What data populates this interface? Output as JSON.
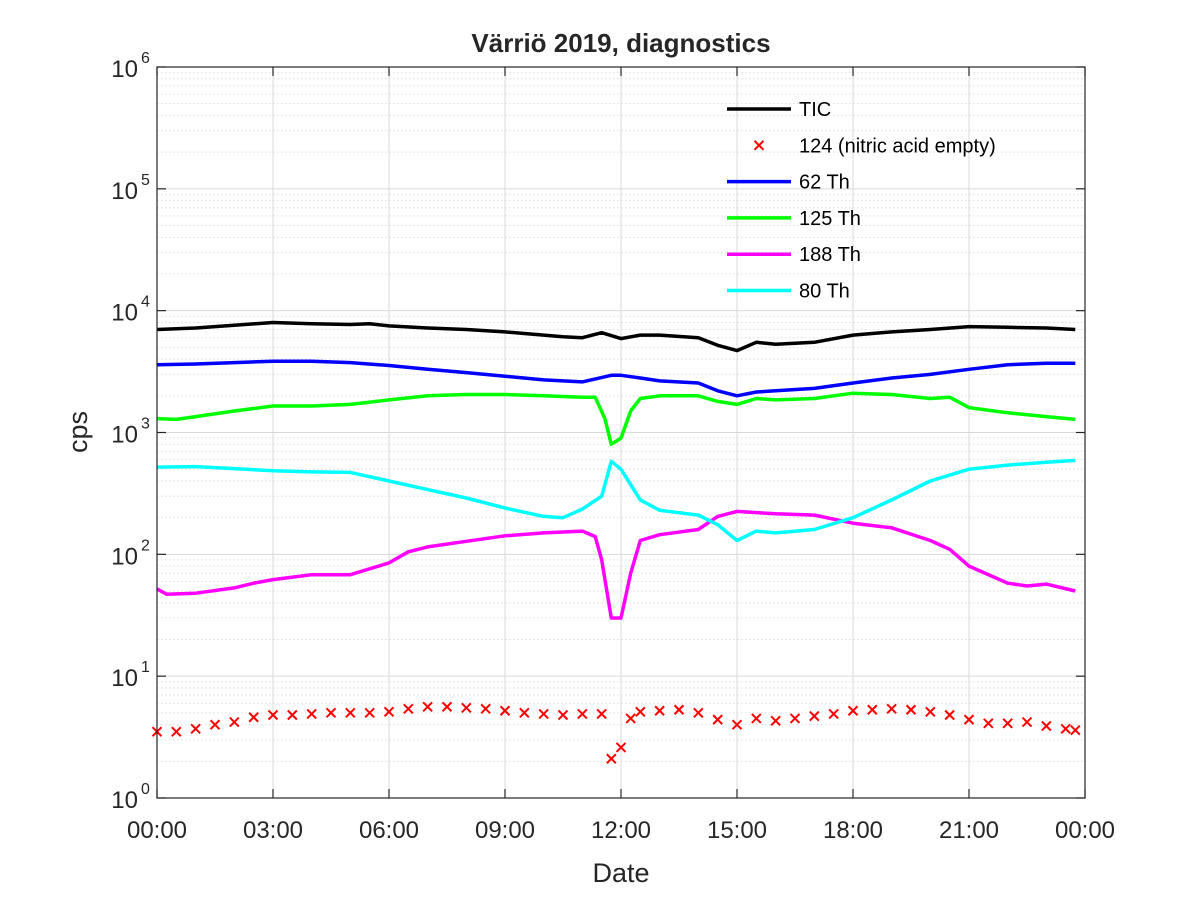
{
  "chart_data": {
    "type": "line",
    "title": "Värriö 2019, diagnostics",
    "xlabel": "Date",
    "ylabel": "cps",
    "yscale": "log",
    "ylim": [
      1,
      1000000
    ],
    "xlim": [
      "00:00",
      "24:00"
    ],
    "grid": true,
    "minor_grid": true,
    "legend_position": "top-right",
    "x_ticks": [
      "00:00",
      "03:00",
      "06:00",
      "09:00",
      "12:00",
      "15:00",
      "18:00",
      "21:00",
      "00:00"
    ],
    "y_ticks": [
      {
        "base": "10",
        "exp": "0"
      },
      {
        "base": "10",
        "exp": "1"
      },
      {
        "base": "10",
        "exp": "2"
      },
      {
        "base": "10",
        "exp": "3"
      },
      {
        "base": "10",
        "exp": "4"
      },
      {
        "base": "10",
        "exp": "5"
      },
      {
        "base": "10",
        "exp": "6"
      }
    ],
    "series": [
      {
        "name": "TIC",
        "style": "line",
        "color": "#000000",
        "points": [
          [
            "00:00",
            7000
          ],
          [
            "01:00",
            7200
          ],
          [
            "02:00",
            7600
          ],
          [
            "03:00",
            8000
          ],
          [
            "04:00",
            7800
          ],
          [
            "05:00",
            7700
          ],
          [
            "05:30",
            7800
          ],
          [
            "06:00",
            7500
          ],
          [
            "07:00",
            7200
          ],
          [
            "08:00",
            7000
          ],
          [
            "09:00",
            6700
          ],
          [
            "10:00",
            6300
          ],
          [
            "10:30",
            6100
          ],
          [
            "11:00",
            6000
          ],
          [
            "11:30",
            6600
          ],
          [
            "12:00",
            5900
          ],
          [
            "12:30",
            6300
          ],
          [
            "13:00",
            6300
          ],
          [
            "14:00",
            6000
          ],
          [
            "14:30",
            5200
          ],
          [
            "15:00",
            4700
          ],
          [
            "15:30",
            5500
          ],
          [
            "16:00",
            5300
          ],
          [
            "17:00",
            5500
          ],
          [
            "18:00",
            6300
          ],
          [
            "19:00",
            6700
          ],
          [
            "20:00",
            7000
          ],
          [
            "21:00",
            7400
          ],
          [
            "22:00",
            7300
          ],
          [
            "23:00",
            7200
          ],
          [
            "23:45",
            7000
          ]
        ]
      },
      {
        "name": "124 (nitric acid empty)",
        "style": "marker",
        "color": "#ff0000",
        "points": [
          [
            "00:00",
            3.5
          ],
          [
            "00:30",
            3.5
          ],
          [
            "01:00",
            3.7
          ],
          [
            "01:30",
            4.0
          ],
          [
            "02:00",
            4.2
          ],
          [
            "02:30",
            4.6
          ],
          [
            "03:00",
            4.8
          ],
          [
            "03:30",
            4.8
          ],
          [
            "04:00",
            4.9
          ],
          [
            "04:30",
            5.0
          ],
          [
            "05:00",
            5.0
          ],
          [
            "05:30",
            5.0
          ],
          [
            "06:00",
            5.1
          ],
          [
            "06:30",
            5.4
          ],
          [
            "07:00",
            5.6
          ],
          [
            "07:30",
            5.6
          ],
          [
            "08:00",
            5.5
          ],
          [
            "08:30",
            5.4
          ],
          [
            "09:00",
            5.2
          ],
          [
            "09:30",
            5.0
          ],
          [
            "10:00",
            4.9
          ],
          [
            "10:30",
            4.8
          ],
          [
            "11:00",
            4.9
          ],
          [
            "11:30",
            4.9
          ],
          [
            "11:45",
            2.1
          ],
          [
            "12:00",
            2.6
          ],
          [
            "12:15",
            4.5
          ],
          [
            "12:30",
            5.1
          ],
          [
            "13:00",
            5.2
          ],
          [
            "13:30",
            5.3
          ],
          [
            "14:00",
            5.0
          ],
          [
            "14:30",
            4.4
          ],
          [
            "15:00",
            4.0
          ],
          [
            "15:30",
            4.5
          ],
          [
            "16:00",
            4.3
          ],
          [
            "16:30",
            4.5
          ],
          [
            "17:00",
            4.7
          ],
          [
            "17:30",
            4.9
          ],
          [
            "18:00",
            5.2
          ],
          [
            "18:30",
            5.3
          ],
          [
            "19:00",
            5.4
          ],
          [
            "19:30",
            5.3
          ],
          [
            "20:00",
            5.1
          ],
          [
            "20:30",
            4.8
          ],
          [
            "21:00",
            4.4
          ],
          [
            "21:30",
            4.1
          ],
          [
            "22:00",
            4.1
          ],
          [
            "22:30",
            4.2
          ],
          [
            "23:00",
            3.9
          ],
          [
            "23:30",
            3.7
          ],
          [
            "23:45",
            3.6
          ]
        ]
      },
      {
        "name": "62 Th",
        "style": "line",
        "color": "#0000ff",
        "points": [
          [
            "00:00",
            3600
          ],
          [
            "01:00",
            3650
          ],
          [
            "02:00",
            3750
          ],
          [
            "03:00",
            3850
          ],
          [
            "04:00",
            3850
          ],
          [
            "05:00",
            3750
          ],
          [
            "06:00",
            3550
          ],
          [
            "07:00",
            3300
          ],
          [
            "08:00",
            3100
          ],
          [
            "09:00",
            2900
          ],
          [
            "10:00",
            2700
          ],
          [
            "11:00",
            2600
          ],
          [
            "11:45",
            2950
          ],
          [
            "12:00",
            2950
          ],
          [
            "12:30",
            2800
          ],
          [
            "13:00",
            2650
          ],
          [
            "14:00",
            2550
          ],
          [
            "14:30",
            2200
          ],
          [
            "15:00",
            2000
          ],
          [
            "15:30",
            2150
          ],
          [
            "16:00",
            2200
          ],
          [
            "17:00",
            2300
          ],
          [
            "18:00",
            2550
          ],
          [
            "19:00",
            2800
          ],
          [
            "20:00",
            3000
          ],
          [
            "21:00",
            3300
          ],
          [
            "22:00",
            3600
          ],
          [
            "23:00",
            3700
          ],
          [
            "23:45",
            3700
          ]
        ]
      },
      {
        "name": "125 Th",
        "style": "line",
        "color": "#00ff00",
        "points": [
          [
            "00:00",
            1300
          ],
          [
            "00:30",
            1280
          ],
          [
            "01:00",
            1350
          ],
          [
            "02:00",
            1500
          ],
          [
            "03:00",
            1650
          ],
          [
            "04:00",
            1650
          ],
          [
            "05:00",
            1700
          ],
          [
            "06:00",
            1850
          ],
          [
            "07:00",
            2000
          ],
          [
            "08:00",
            2050
          ],
          [
            "09:00",
            2050
          ],
          [
            "10:00",
            2000
          ],
          [
            "11:00",
            1950
          ],
          [
            "11:20",
            1950
          ],
          [
            "11:35",
            1300
          ],
          [
            "11:45",
            800
          ],
          [
            "12:00",
            900
          ],
          [
            "12:15",
            1500
          ],
          [
            "12:30",
            1900
          ],
          [
            "13:00",
            2000
          ],
          [
            "14:00",
            2000
          ],
          [
            "14:30",
            1800
          ],
          [
            "15:00",
            1700
          ],
          [
            "15:30",
            1900
          ],
          [
            "16:00",
            1850
          ],
          [
            "17:00",
            1900
          ],
          [
            "18:00",
            2100
          ],
          [
            "19:00",
            2050
          ],
          [
            "20:00",
            1900
          ],
          [
            "20:30",
            1950
          ],
          [
            "21:00",
            1600
          ],
          [
            "22:00",
            1450
          ],
          [
            "23:00",
            1350
          ],
          [
            "23:45",
            1280
          ]
        ]
      },
      {
        "name": "188 Th",
        "style": "line",
        "color": "#ff00ff",
        "points": [
          [
            "00:00",
            52
          ],
          [
            "00:15",
            47
          ],
          [
            "01:00",
            48
          ],
          [
            "02:00",
            53
          ],
          [
            "02:30",
            58
          ],
          [
            "03:00",
            62
          ],
          [
            "04:00",
            68
          ],
          [
            "05:00",
            68
          ],
          [
            "06:00",
            85
          ],
          [
            "06:30",
            105
          ],
          [
            "07:00",
            115
          ],
          [
            "08:00",
            128
          ],
          [
            "09:00",
            142
          ],
          [
            "10:00",
            150
          ],
          [
            "11:00",
            155
          ],
          [
            "11:20",
            140
          ],
          [
            "11:30",
            90
          ],
          [
            "11:45",
            30
          ],
          [
            "12:00",
            30
          ],
          [
            "12:15",
            70
          ],
          [
            "12:30",
            130
          ],
          [
            "13:00",
            145
          ],
          [
            "14:00",
            160
          ],
          [
            "14:30",
            205
          ],
          [
            "15:00",
            225
          ],
          [
            "16:00",
            215
          ],
          [
            "17:00",
            210
          ],
          [
            "18:00",
            180
          ],
          [
            "19:00",
            165
          ],
          [
            "20:00",
            130
          ],
          [
            "20:30",
            110
          ],
          [
            "21:00",
            80
          ],
          [
            "22:00",
            58
          ],
          [
            "22:30",
            55
          ],
          [
            "23:00",
            57
          ],
          [
            "23:45",
            50
          ]
        ]
      },
      {
        "name": "80 Th",
        "style": "line",
        "color": "#00ffff",
        "points": [
          [
            "00:00",
            520
          ],
          [
            "01:00",
            525
          ],
          [
            "02:00",
            505
          ],
          [
            "03:00",
            485
          ],
          [
            "04:00",
            475
          ],
          [
            "05:00",
            470
          ],
          [
            "06:00",
            400
          ],
          [
            "07:00",
            340
          ],
          [
            "08:00",
            290
          ],
          [
            "09:00",
            240
          ],
          [
            "10:00",
            205
          ],
          [
            "10:30",
            200
          ],
          [
            "11:00",
            235
          ],
          [
            "11:30",
            300
          ],
          [
            "11:45",
            580
          ],
          [
            "12:00",
            500
          ],
          [
            "12:30",
            280
          ],
          [
            "13:00",
            230
          ],
          [
            "14:00",
            210
          ],
          [
            "14:30",
            175
          ],
          [
            "15:00",
            130
          ],
          [
            "15:30",
            155
          ],
          [
            "16:00",
            150
          ],
          [
            "17:00",
            160
          ],
          [
            "18:00",
            200
          ],
          [
            "19:00",
            280
          ],
          [
            "20:00",
            400
          ],
          [
            "21:00",
            500
          ],
          [
            "22:00",
            540
          ],
          [
            "23:00",
            570
          ],
          [
            "23:45",
            590
          ]
        ]
      }
    ]
  }
}
